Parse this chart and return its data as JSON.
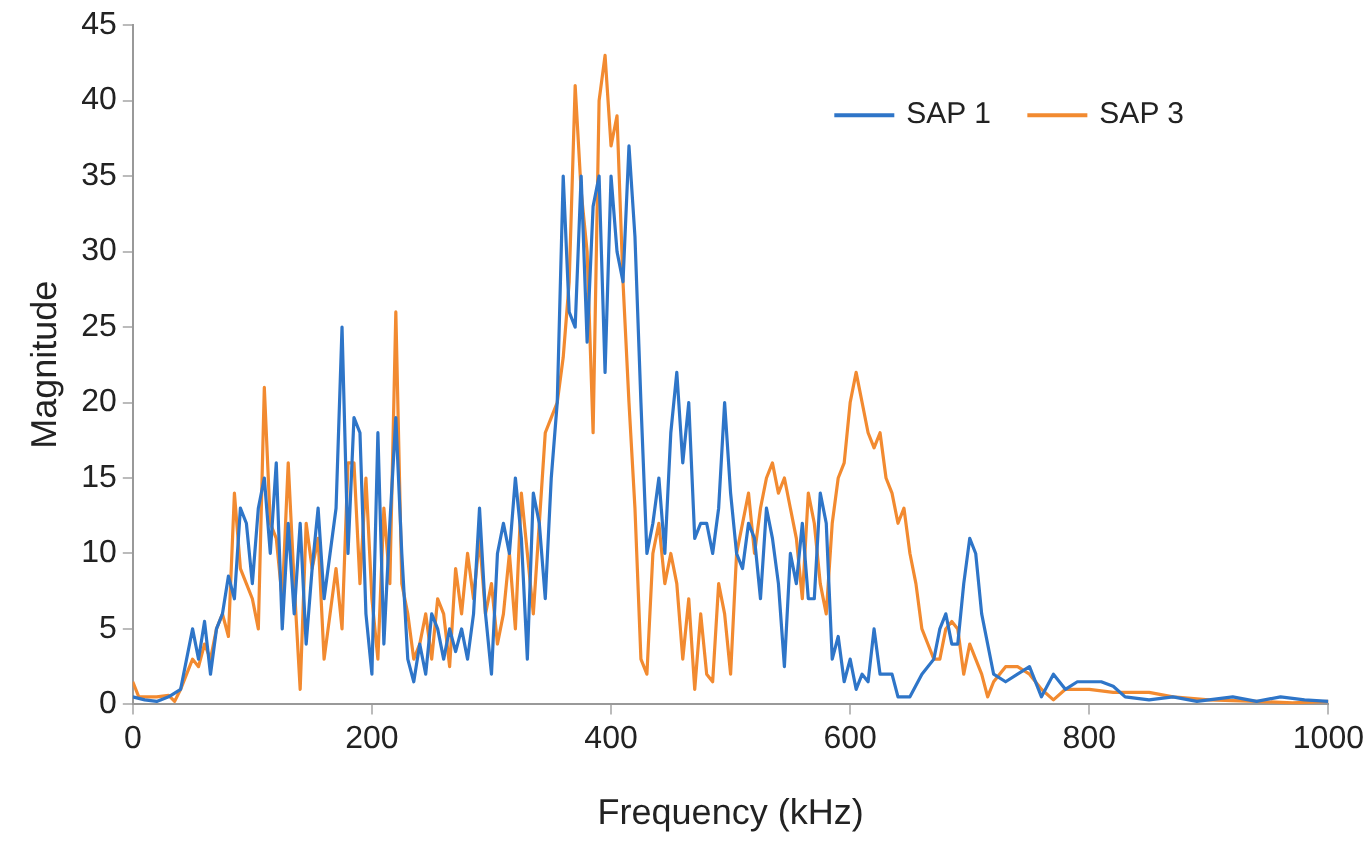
{
  "chart_data": {
    "type": "line",
    "xlabel": "Frequency (kHz)",
    "ylabel": "Magnitude",
    "xlim": [
      0,
      1000
    ],
    "xticks": [
      0,
      200,
      400,
      600,
      800,
      1000
    ],
    "ylim": [
      0,
      45
    ],
    "yticks": [
      0,
      5,
      10,
      15,
      20,
      25,
      30,
      35,
      40,
      45
    ],
    "grid": false,
    "legend": "top right",
    "marker": "none",
    "line_style": "solid",
    "series": [
      {
        "name": "SAP 1",
        "color": "#2e75c8",
        "x": [
          0,
          10,
          20,
          30,
          40,
          50,
          55,
          60,
          65,
          70,
          75,
          80,
          85,
          90,
          95,
          100,
          105,
          110,
          115,
          120,
          125,
          130,
          135,
          140,
          145,
          150,
          155,
          160,
          165,
          170,
          175,
          180,
          185,
          190,
          195,
          200,
          205,
          210,
          215,
          220,
          225,
          230,
          235,
          240,
          245,
          250,
          255,
          260,
          265,
          270,
          275,
          280,
          285,
          290,
          295,
          300,
          305,
          310,
          315,
          320,
          325,
          330,
          335,
          340,
          345,
          350,
          355,
          360,
          365,
          370,
          375,
          380,
          385,
          390,
          395,
          400,
          405,
          410,
          415,
          420,
          425,
          430,
          435,
          440,
          445,
          450,
          455,
          460,
          465,
          470,
          475,
          480,
          485,
          490,
          495,
          500,
          505,
          510,
          515,
          520,
          525,
          530,
          535,
          540,
          545,
          550,
          555,
          560,
          565,
          570,
          575,
          580,
          585,
          590,
          595,
          600,
          605,
          610,
          615,
          620,
          625,
          630,
          635,
          640,
          650,
          660,
          670,
          675,
          680,
          685,
          690,
          695,
          700,
          705,
          710,
          720,
          730,
          740,
          750,
          760,
          770,
          780,
          790,
          800,
          810,
          820,
          830,
          850,
          870,
          890,
          900,
          920,
          940,
          960,
          980,
          1000
        ],
        "values": [
          0.5,
          0.3,
          0.2,
          0.5,
          1,
          5,
          3,
          5.5,
          2,
          5,
          6,
          8.5,
          7,
          13,
          12,
          8,
          13,
          15,
          10,
          16,
          5,
          12,
          6,
          12,
          4,
          9,
          13,
          7,
          10,
          13,
          25,
          10,
          19,
          18,
          6,
          2,
          18,
          4,
          12,
          19,
          10,
          3,
          1.5,
          4,
          2,
          6,
          5,
          3,
          5,
          3.5,
          5,
          3,
          6,
          13,
          6,
          2,
          10,
          12,
          10,
          15,
          11,
          3,
          14,
          12,
          7,
          15,
          20,
          35,
          26,
          25,
          35,
          24,
          33,
          35,
          22,
          35,
          30,
          28,
          37,
          31,
          20,
          10,
          12,
          15,
          10,
          18,
          22,
          16,
          20,
          11,
          12,
          12,
          10,
          13,
          20,
          14,
          10,
          9,
          12,
          11,
          7,
          13,
          11,
          8,
          2.5,
          10,
          8,
          12,
          7,
          7,
          14,
          12,
          3,
          4.5,
          1.5,
          3,
          1,
          2,
          1.5,
          5,
          2,
          2,
          2,
          0.5,
          0.5,
          2,
          3,
          5,
          6,
          4,
          4,
          8,
          11,
          10,
          6,
          2,
          1.5,
          2,
          2.5,
          0.5,
          2,
          1,
          1.5,
          1.5,
          1.5,
          1.2,
          0.5,
          0.3,
          0.5,
          0.2,
          0.3,
          0.5,
          0.2,
          0.5,
          0.3,
          0.2
        ]
      },
      {
        "name": "SAP 3",
        "color": "#f28a30",
        "x": [
          0,
          5,
          10,
          20,
          30,
          35,
          40,
          45,
          50,
          55,
          60,
          65,
          70,
          75,
          80,
          85,
          90,
          95,
          100,
          105,
          110,
          115,
          120,
          125,
          130,
          135,
          140,
          145,
          150,
          155,
          160,
          165,
          170,
          175,
          180,
          185,
          190,
          195,
          200,
          205,
          210,
          215,
          220,
          225,
          230,
          235,
          240,
          245,
          250,
          255,
          260,
          265,
          270,
          275,
          280,
          285,
          290,
          295,
          300,
          305,
          310,
          315,
          320,
          325,
          330,
          335,
          340,
          345,
          350,
          355,
          360,
          365,
          370,
          375,
          380,
          385,
          390,
          395,
          400,
          405,
          410,
          415,
          420,
          425,
          430,
          435,
          440,
          445,
          450,
          455,
          460,
          465,
          470,
          475,
          480,
          485,
          490,
          495,
          500,
          505,
          510,
          515,
          520,
          525,
          530,
          535,
          540,
          545,
          550,
          555,
          560,
          565,
          570,
          575,
          580,
          585,
          590,
          595,
          600,
          605,
          610,
          615,
          620,
          625,
          630,
          635,
          640,
          645,
          650,
          655,
          660,
          665,
          670,
          675,
          680,
          685,
          690,
          695,
          700,
          705,
          710,
          715,
          720,
          730,
          740,
          750,
          760,
          770,
          780,
          790,
          800,
          820,
          850,
          870,
          900,
          940,
          970,
          1000
        ],
        "values": [
          1.5,
          0.5,
          0.5,
          0.5,
          0.6,
          0.2,
          1,
          2,
          3,
          2.5,
          4,
          3,
          5,
          6,
          4.5,
          14,
          9,
          8,
          7,
          5,
          21,
          12,
          11,
          7,
          16,
          8,
          1,
          12,
          9,
          11,
          3,
          6,
          9,
          5,
          16,
          16,
          8,
          15,
          7,
          3,
          13,
          8,
          26,
          8,
          6,
          3,
          4,
          6,
          3,
          7,
          6,
          2.5,
          9,
          6,
          10,
          7,
          11,
          6,
          8,
          4,
          6,
          10,
          5,
          14,
          10,
          6,
          12,
          18,
          19,
          20,
          23,
          28,
          41,
          34,
          30,
          18,
          40,
          43,
          37,
          39,
          28,
          20,
          13,
          3,
          2,
          10,
          12,
          8,
          10,
          8,
          3,
          7,
          1,
          6,
          2,
          1.5,
          8,
          6,
          2,
          10,
          12,
          14,
          10,
          13,
          15,
          16,
          14,
          15,
          13,
          11,
          7,
          14,
          12,
          8,
          6,
          12,
          15,
          16,
          20,
          22,
          20,
          18,
          17,
          18,
          15,
          14,
          12,
          13,
          10,
          8,
          5,
          4,
          3,
          3,
          5,
          5.5,
          5,
          2,
          4,
          3,
          2,
          0.5,
          1.5,
          2.5,
          2.5,
          2,
          1,
          0.3,
          1,
          1,
          1,
          0.8,
          0.8,
          0.5,
          0.3,
          0.2,
          0.1,
          0.2
        ]
      }
    ]
  }
}
